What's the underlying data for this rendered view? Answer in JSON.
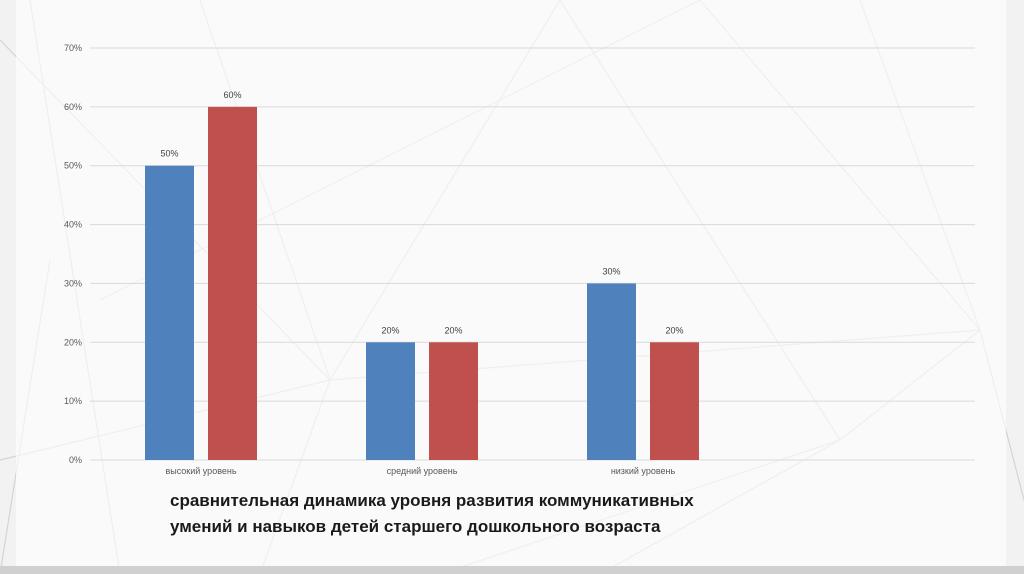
{
  "caption": {
    "line1": "сравнительная динамика уровня развития коммуникативных",
    "line2": "умений и навыков детей старшего дошкольного возраста"
  },
  "colors": {
    "series1": "#4f81bd",
    "series2": "#c0504d",
    "grid": "#d9d9d9"
  },
  "chart_data": {
    "type": "bar",
    "categories": [
      "высокий уровень",
      "средний уровень",
      "низкий уровень"
    ],
    "series": [
      {
        "values": [
          50,
          20,
          30
        ],
        "color": "#4f81bd"
      },
      {
        "values": [
          60,
          20,
          20
        ],
        "color": "#c0504d"
      }
    ],
    "data_labels": [
      [
        "50%",
        "20%",
        "30%"
      ],
      [
        "60%",
        "20%",
        "20%"
      ]
    ],
    "y_ticks": [
      "0%",
      "10%",
      "20%",
      "30%",
      "40%",
      "50%",
      "60%",
      "70%"
    ],
    "ylim": [
      0,
      70
    ],
    "grid": true,
    "legend": "none"
  }
}
